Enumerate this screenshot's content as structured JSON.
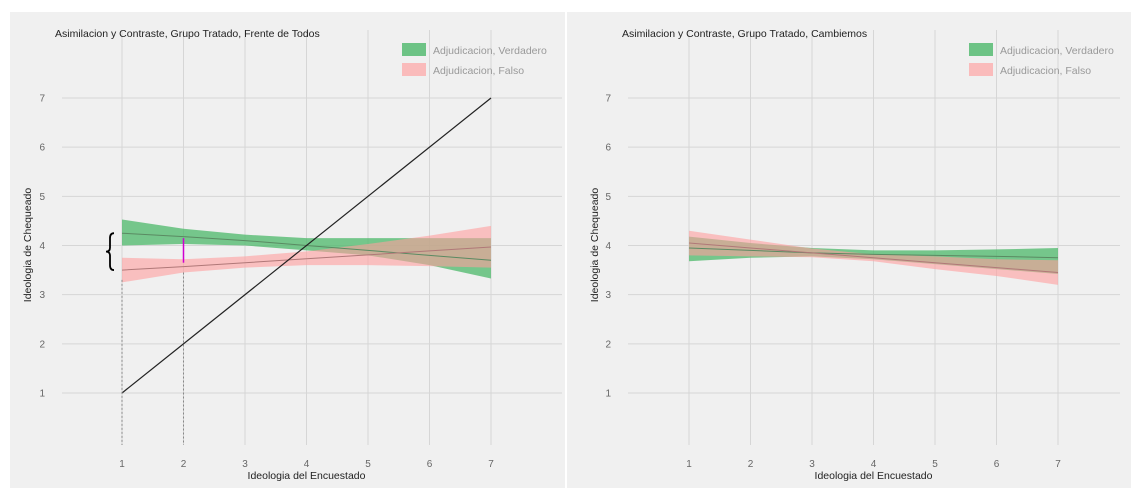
{
  "chart_data": [
    {
      "type": "area",
      "title": "Asimilacion y Contraste, Grupo Tratado, Frente de Todos",
      "xlabel": "Ideologia del Encuestado",
      "ylabel": "Ideologia de Chequeado",
      "xlim": [
        0,
        8
      ],
      "ylim": [
        0,
        8
      ],
      "x_ticks": [
        1,
        2,
        3,
        4,
        5,
        6,
        7
      ],
      "y_ticks": [
        1,
        2,
        3,
        4,
        5,
        6,
        7
      ],
      "grid": true,
      "legend_position": "top-right",
      "series": [
        {
          "name": "Adjudicacion, Verdadero",
          "color": "#4cb86a",
          "x": [
            1,
            2,
            3,
            4,
            5,
            6,
            7
          ],
          "fit": [
            4.25,
            4.18,
            4.1,
            4.0,
            3.9,
            3.8,
            3.7
          ],
          "lower": [
            4.0,
            4.03,
            4.0,
            3.9,
            3.8,
            3.6,
            3.33
          ],
          "upper": [
            4.53,
            4.34,
            4.22,
            4.15,
            4.15,
            4.15,
            4.15
          ]
        },
        {
          "name": "Adjudicacion, Falso",
          "color": "#ff9e9e",
          "x": [
            1,
            2,
            3,
            4,
            5,
            6,
            7
          ],
          "fit": [
            3.5,
            3.57,
            3.65,
            3.73,
            3.81,
            3.89,
            3.97
          ],
          "lower": [
            3.25,
            3.45,
            3.55,
            3.6,
            3.6,
            3.58,
            3.55
          ],
          "upper": [
            3.75,
            3.72,
            3.78,
            3.88,
            4.03,
            4.2,
            4.4
          ]
        }
      ],
      "reference_line": {
        "x": [
          1,
          7
        ],
        "y": [
          1,
          7
        ],
        "color": "#222222"
      },
      "annotations": [
        {
          "type": "brace",
          "x": 1,
          "y_from": 3.5,
          "y_to": 4.25
        },
        {
          "type": "segment",
          "color": "#d000d0",
          "x": 2,
          "y_from": 3.65,
          "y_to": 4.15
        },
        {
          "type": "dotted-vline",
          "x": 1,
          "y_from": 0,
          "y_to": 3.3
        },
        {
          "type": "dotted-vline",
          "x": 2,
          "y_from": 0,
          "y_to": 3.45
        }
      ]
    },
    {
      "type": "area",
      "title": "Asimilacion y Contraste, Grupo Tratado, Cambiemos",
      "xlabel": "Ideologia del Encuestado",
      "ylabel": "Ideologia de Chequeado",
      "xlim": [
        0,
        8
      ],
      "ylim": [
        0,
        8
      ],
      "x_ticks": [
        1,
        2,
        3,
        4,
        5,
        6,
        7
      ],
      "y_ticks": [
        1,
        2,
        3,
        4,
        5,
        6,
        7
      ],
      "grid": true,
      "legend_position": "top-right",
      "series": [
        {
          "name": "Adjudicacion, Verdadero",
          "color": "#4cb86a",
          "x": [
            1,
            2,
            3,
            4,
            5,
            6,
            7
          ],
          "fit": [
            3.95,
            3.9,
            3.85,
            3.82,
            3.8,
            3.78,
            3.75
          ],
          "lower": [
            3.68,
            3.75,
            3.78,
            3.72,
            3.62,
            3.52,
            3.42
          ],
          "upper": [
            4.18,
            4.05,
            3.95,
            3.9,
            3.9,
            3.92,
            3.95
          ]
        },
        {
          "name": "Adjudicacion, Falso",
          "color": "#ff9e9e",
          "x": [
            1,
            2,
            3,
            4,
            5,
            6,
            7
          ],
          "fit": [
            4.05,
            3.95,
            3.85,
            3.75,
            3.65,
            3.55,
            3.45
          ],
          "lower": [
            3.8,
            3.78,
            3.76,
            3.68,
            3.52,
            3.38,
            3.2
          ],
          "upper": [
            4.3,
            4.12,
            3.94,
            3.82,
            3.78,
            3.72,
            3.7
          ]
        }
      ]
    }
  ]
}
